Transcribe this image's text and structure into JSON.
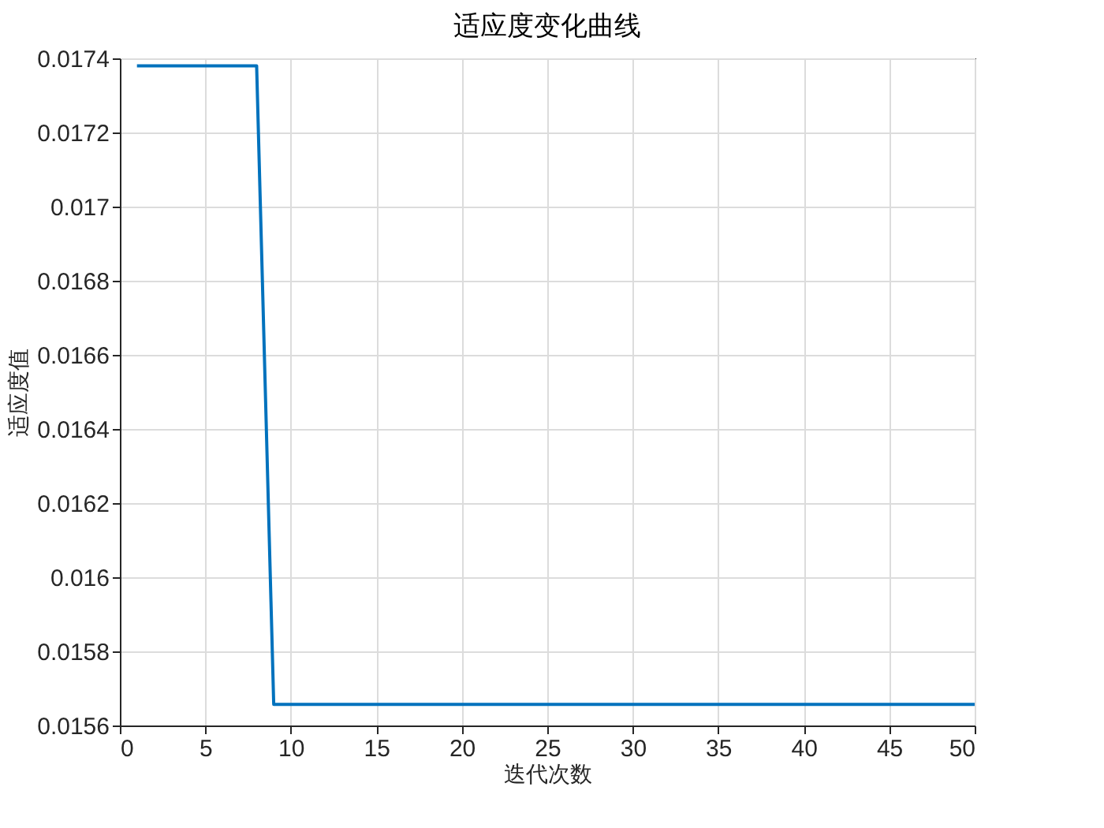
{
  "chart_data": {
    "type": "line",
    "title": "适应度变化曲线",
    "xlabel": "迭代次数",
    "ylabel": "适应度值",
    "x": [
      1,
      8,
      9,
      50
    ],
    "series": [
      {
        "color": "#0072bd",
        "values": [
          0.01738,
          0.01738,
          0.015657,
          0.015657
        ]
      }
    ],
    "xlim": [
      0,
      50
    ],
    "xticks": [
      0,
      5,
      10,
      15,
      20,
      25,
      30,
      35,
      40,
      45,
      50
    ],
    "ylim": [
      0.0156,
      0.0174
    ],
    "yticks": [
      0.0156,
      0.0158,
      0.016,
      0.0162,
      0.0164,
      0.0166,
      0.0168,
      0.017,
      0.0172,
      0.0174
    ],
    "grid": true,
    "legend": false,
    "marker": "none",
    "line_style": "solid"
  }
}
